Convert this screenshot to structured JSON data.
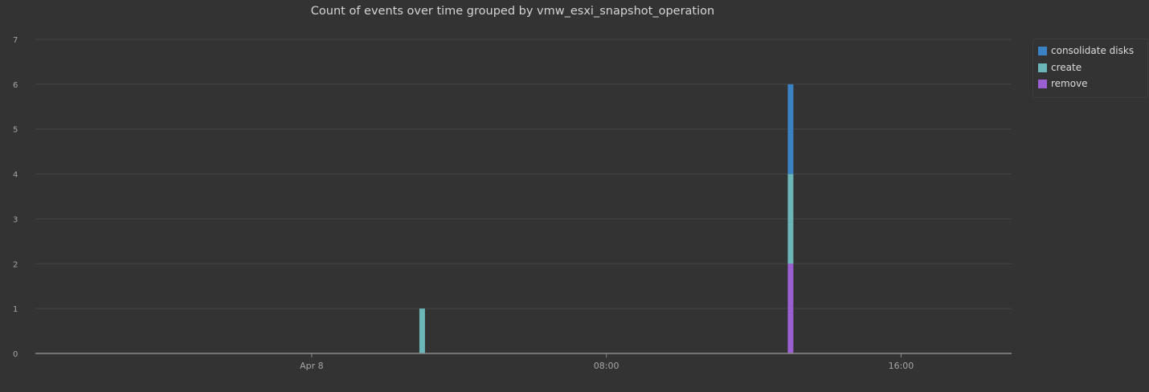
{
  "chart_data": {
    "type": "bar",
    "stacked": true,
    "title": "Count of events over time grouped by vmw_esxi_snapshot_operation",
    "xlabel": "",
    "ylabel": "",
    "ylim": [
      0,
      7
    ],
    "yticks": [
      0,
      1,
      2,
      3,
      4,
      5,
      6,
      7
    ],
    "x_axis_type": "time",
    "xlim": [
      "2024-04-07T16:30",
      "2024-04-08T19:00"
    ],
    "xticks": [
      {
        "t": "2024-04-08T00:00",
        "label": "Apr 8"
      },
      {
        "t": "2024-04-08T08:00",
        "label": "08:00"
      },
      {
        "t": "2024-04-08T16:00",
        "label": "16:00"
      }
    ],
    "grid": true,
    "legend_position": "top-right",
    "series": [
      {
        "name": "consolidate disks",
        "color": "#3b82c4",
        "points": [
          {
            "t": "2024-04-08T13:00",
            "value": 2
          }
        ]
      },
      {
        "name": "create",
        "color": "#6cb5b8",
        "points": [
          {
            "t": "2024-04-08T03:00",
            "value": 1
          },
          {
            "t": "2024-04-08T13:00",
            "value": 2
          }
        ]
      },
      {
        "name": "remove",
        "color": "#9a5fd1",
        "points": [
          {
            "t": "2024-04-08T13:00",
            "value": 2
          }
        ]
      }
    ]
  }
}
